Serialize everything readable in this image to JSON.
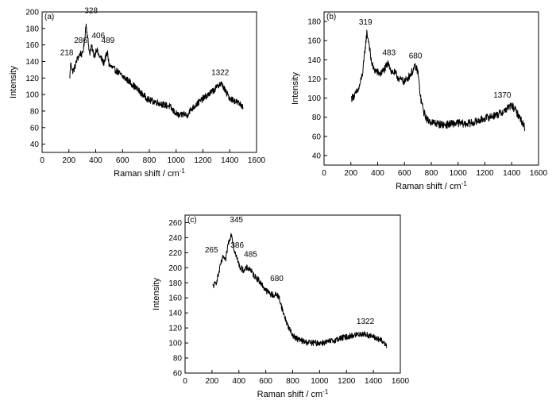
{
  "figure_label_left_paren": "(",
  "chart_data": [
    {
      "type": "line",
      "panel_label": "(a)",
      "xlabel": "Raman shift / cm",
      "xlabel_superscript": "-1",
      "ylabel": "Intensity",
      "xlim": [
        0,
        1600
      ],
      "ylim": [
        30,
        200
      ],
      "xticks": [
        0,
        200,
        400,
        600,
        800,
        1000,
        1200,
        1400,
        1600
      ],
      "yticks": [
        40,
        60,
        80,
        100,
        120,
        140,
        160,
        180,
        200
      ],
      "series_color": "#000000",
      "anchors": [
        [
          205,
          118
        ],
        [
          215,
          140
        ],
        [
          225,
          128
        ],
        [
          240,
          131
        ],
        [
          260,
          142
        ],
        [
          286,
          150
        ],
        [
          300,
          148
        ],
        [
          315,
          162
        ],
        [
          328,
          186
        ],
        [
          340,
          168
        ],
        [
          355,
          150
        ],
        [
          370,
          158
        ],
        [
          390,
          146
        ],
        [
          406,
          156
        ],
        [
          420,
          148
        ],
        [
          440,
          144
        ],
        [
          460,
          138
        ],
        [
          475,
          146
        ],
        [
          489,
          150
        ],
        [
          500,
          136
        ],
        [
          520,
          133
        ],
        [
          560,
          128
        ],
        [
          600,
          122
        ],
        [
          650,
          116
        ],
        [
          700,
          108
        ],
        [
          750,
          100
        ],
        [
          800,
          93
        ],
        [
          850,
          91
        ],
        [
          900,
          88
        ],
        [
          950,
          86
        ],
        [
          980,
          80
        ],
        [
          1000,
          77
        ],
        [
          1030,
          74
        ],
        [
          1060,
          77
        ],
        [
          1080,
          74
        ],
        [
          1100,
          80
        ],
        [
          1150,
          88
        ],
        [
          1200,
          95
        ],
        [
          1250,
          101
        ],
        [
          1300,
          108
        ],
        [
          1322,
          113
        ],
        [
          1345,
          112
        ],
        [
          1370,
          103
        ],
        [
          1400,
          96
        ],
        [
          1450,
          91
        ],
        [
          1500,
          86
        ]
      ],
      "noise": 4,
      "peaks": [
        {
          "x": 218,
          "y": 142,
          "label": "218"
        },
        {
          "x": 286,
          "y": 151,
          "label": "286"
        },
        {
          "x": 328,
          "y": 189,
          "label": "328"
        },
        {
          "x": 406,
          "y": 157,
          "label": "406"
        },
        {
          "x": 489,
          "y": 151,
          "label": "489"
        },
        {
          "x": 1322,
          "y": 114,
          "label": "1322"
        }
      ]
    },
    {
      "type": "line",
      "panel_label": "(b)",
      "xlabel": "Raman shift / cm",
      "xlabel_superscript": "-1",
      "ylabel": "Intensity",
      "xlim": [
        0,
        1600
      ],
      "ylim": [
        30,
        190
      ],
      "xticks": [
        0,
        200,
        400,
        600,
        800,
        1000,
        1200,
        1400,
        1600
      ],
      "yticks": [
        40,
        60,
        80,
        100,
        120,
        140,
        160,
        180
      ],
      "series_color": "#000000",
      "anchors": [
        [
          205,
          100
        ],
        [
          230,
          103
        ],
        [
          260,
          110
        ],
        [
          290,
          128
        ],
        [
          305,
          150
        ],
        [
          319,
          168
        ],
        [
          335,
          158
        ],
        [
          350,
          140
        ],
        [
          370,
          130
        ],
        [
          390,
          128
        ],
        [
          420,
          125
        ],
        [
          450,
          130
        ],
        [
          483,
          137
        ],
        [
          500,
          128
        ],
        [
          530,
          126
        ],
        [
          560,
          120
        ],
        [
          600,
          117
        ],
        [
          630,
          122
        ],
        [
          660,
          128
        ],
        [
          680,
          133
        ],
        [
          700,
          128
        ],
        [
          720,
          100
        ],
        [
          745,
          85
        ],
        [
          770,
          77
        ],
        [
          800,
          75
        ],
        [
          850,
          73
        ],
        [
          900,
          72
        ],
        [
          950,
          73
        ],
        [
          1000,
          74
        ],
        [
          1050,
          73
        ],
        [
          1100,
          74
        ],
        [
          1150,
          76
        ],
        [
          1200,
          79
        ],
        [
          1250,
          81
        ],
        [
          1300,
          83
        ],
        [
          1340,
          86
        ],
        [
          1370,
          90
        ],
        [
          1400,
          92
        ],
        [
          1420,
          89
        ],
        [
          1450,
          82
        ],
        [
          1475,
          76
        ],
        [
          1500,
          68
        ]
      ],
      "noise": 4,
      "peaks": [
        {
          "x": 319,
          "y": 170,
          "label": "319"
        },
        {
          "x": 483,
          "y": 138,
          "label": "483"
        },
        {
          "x": 680,
          "y": 135,
          "label": "680"
        },
        {
          "x": 1370,
          "y": 94,
          "label": "1370"
        }
      ]
    },
    {
      "type": "line",
      "panel_label": "(c)",
      "xlabel": "Raman shift / cm",
      "xlabel_superscript": "-1",
      "ylabel": "Intensity",
      "xlim": [
        0,
        1600
      ],
      "ylim": [
        60,
        270
      ],
      "xticks": [
        0,
        200,
        400,
        600,
        800,
        1000,
        1200,
        1400,
        1600
      ],
      "yticks": [
        60,
        80,
        100,
        120,
        140,
        160,
        180,
        200,
        220,
        240,
        260
      ],
      "series_color": "#000000",
      "anchors": [
        [
          205,
          175
        ],
        [
          230,
          180
        ],
        [
          250,
          192
        ],
        [
          265,
          205
        ],
        [
          285,
          215
        ],
        [
          300,
          208
        ],
        [
          320,
          232
        ],
        [
          345,
          246
        ],
        [
          360,
          228
        ],
        [
          386,
          212
        ],
        [
          410,
          200
        ],
        [
          440,
          196
        ],
        [
          460,
          200
        ],
        [
          485,
          198
        ],
        [
          510,
          190
        ],
        [
          540,
          185
        ],
        [
          570,
          178
        ],
        [
          600,
          170
        ],
        [
          630,
          166
        ],
        [
          660,
          163
        ],
        [
          680,
          165
        ],
        [
          700,
          160
        ],
        [
          730,
          140
        ],
        [
          760,
          125
        ],
        [
          790,
          113
        ],
        [
          820,
          107
        ],
        [
          850,
          104
        ],
        [
          900,
          101
        ],
        [
          950,
          100
        ],
        [
          1000,
          100
        ],
        [
          1050,
          101
        ],
        [
          1100,
          103
        ],
        [
          1150,
          106
        ],
        [
          1200,
          108
        ],
        [
          1250,
          110
        ],
        [
          1300,
          112
        ],
        [
          1322,
          112
        ],
        [
          1350,
          111
        ],
        [
          1400,
          108
        ],
        [
          1450,
          104
        ],
        [
          1500,
          97
        ]
      ],
      "noise": 4,
      "peaks": [
        {
          "x": 265,
          "y": 212,
          "label": "265"
        },
        {
          "x": 345,
          "y": 250,
          "label": "345"
        },
        {
          "x": 386,
          "y": 214,
          "label": "386"
        },
        {
          "x": 485,
          "y": 202,
          "label": "485"
        },
        {
          "x": 680,
          "y": 170,
          "label": "680"
        },
        {
          "x": 1322,
          "y": 115,
          "label": "1322"
        }
      ]
    }
  ]
}
